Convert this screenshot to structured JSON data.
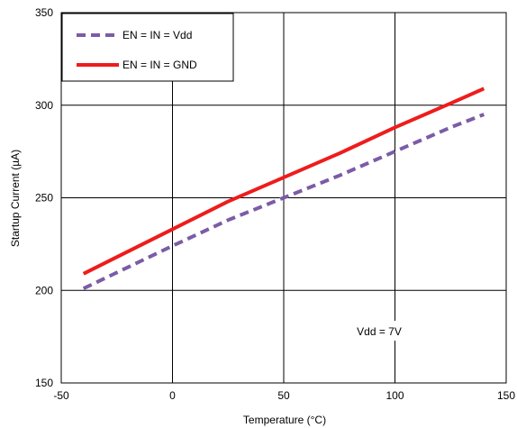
{
  "chart_data": {
    "type": "line",
    "title": "",
    "xlabel": "Temperature (°C)",
    "ylabel": "Startup Current (µA)",
    "xlim": [
      -50,
      150
    ],
    "ylim": [
      150,
      350
    ],
    "x_ticks": [
      -50,
      0,
      50,
      100,
      150
    ],
    "y_ticks": [
      150,
      200,
      250,
      300,
      350
    ],
    "x_tick_labels": [
      "-50",
      "0",
      "50",
      "100",
      "150"
    ],
    "y_tick_labels": [
      "150",
      "200",
      "250",
      "300",
      "350"
    ],
    "grid": true,
    "legend_position": "top-left",
    "series": [
      {
        "name": "EN = IN = Vdd",
        "color": "#7B5CA6",
        "style": "dashed",
        "x": [
          -40,
          0,
          25,
          50,
          75,
          100,
          125,
          140
        ],
        "y": [
          201,
          224,
          238,
          250,
          262,
          275,
          288,
          295
        ]
      },
      {
        "name": "EN = IN = GND",
        "color": "#EE1C1C",
        "style": "solid",
        "x": [
          -40,
          0,
          25,
          50,
          75,
          100,
          125,
          140
        ],
        "y": [
          209,
          233,
          248,
          261,
          274,
          288,
          301,
          309
        ]
      }
    ],
    "annotations": [
      {
        "text": "Vdd = 7V",
        "x": 100,
        "y": 178
      }
    ]
  }
}
